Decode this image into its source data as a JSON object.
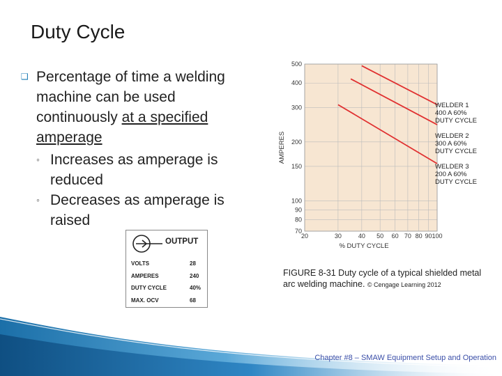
{
  "slide": {
    "title": "Duty Cycle",
    "bullet": {
      "text_before": "Percentage of time a welding machine can be used continuously ",
      "underlined": "at a specified amperage"
    },
    "sub_bullets": [
      "Increases as amperage is reduced",
      "Decreases as amperage is raised"
    ],
    "sub_mark": "◦",
    "bullet_icon": "square-bullet-icon"
  },
  "nameplate": {
    "header": "OUTPUT",
    "rows": [
      {
        "label": "VOLTS",
        "value": "28"
      },
      {
        "label": "AMPERES",
        "value": "240"
      },
      {
        "label": "DUTY CYCLE",
        "value": "40%"
      },
      {
        "label": "MAX. OCV",
        "value": "68"
      }
    ]
  },
  "caption": {
    "text": "FIGURE 8-31 Duty cycle of a typical shielded metal arc welding machine.",
    "credit": "© Cengage Learning 2012"
  },
  "footer": "Chapter #8 – SMAW Equipment Setup and Operation",
  "colors": {
    "series": "#e03030",
    "grid": "#bbbbbb",
    "plot_bg": "#f7e6d2",
    "accent": "#1b7bb5"
  },
  "chart_data": {
    "type": "line",
    "xlabel": "% DUTY CYCLE",
    "ylabel": "AMPERES",
    "x_ticks": [
      20,
      30,
      40,
      50,
      60,
      70,
      80,
      90,
      100
    ],
    "y_ticks": [
      70,
      80,
      90,
      100,
      150,
      200,
      300,
      400,
      500
    ],
    "x_scale": "log",
    "y_scale": "log",
    "xlim": [
      20,
      100
    ],
    "ylim": [
      70,
      500
    ],
    "grid": true,
    "series": [
      {
        "label_lines": [
          "WELDER 1",
          "400 A 60%",
          "DUTY CYCLE"
        ],
        "x": [
          40,
          100
        ],
        "y": [
          490,
          310
        ]
      },
      {
        "label_lines": [
          "WELDER 2",
          "300 A 60%",
          "DUTY CYCLE"
        ],
        "x": [
          35,
          100
        ],
        "y": [
          420,
          245
        ]
      },
      {
        "label_lines": [
          "WELDER 3",
          "200 A 60%",
          "DUTY CYCLE"
        ],
        "x": [
          30,
          100
        ],
        "y": [
          310,
          155
        ]
      }
    ]
  }
}
